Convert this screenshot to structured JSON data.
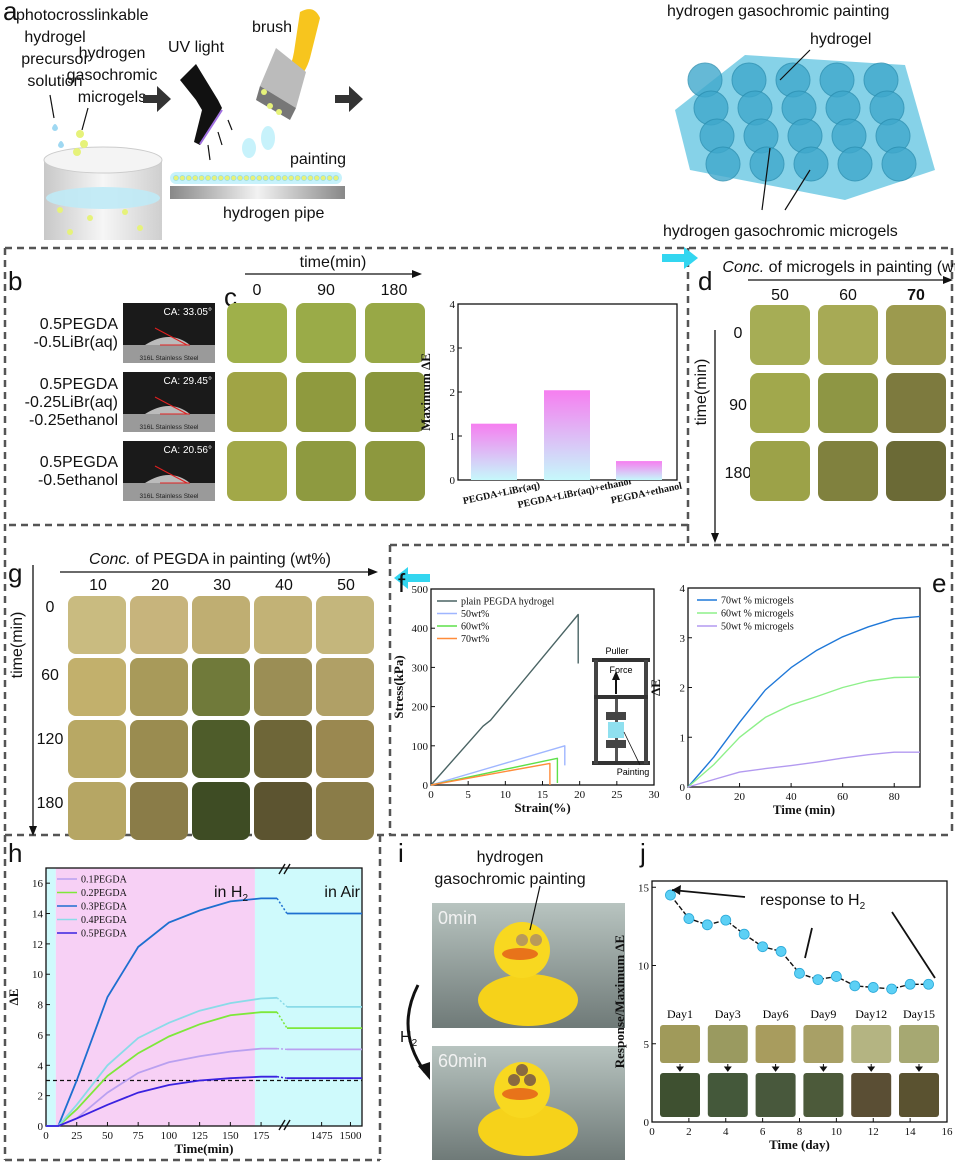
{
  "panel_labels": {
    "a": "a",
    "b": "b",
    "c": "c",
    "d": "d",
    "e": "e",
    "f": "f",
    "g": "g",
    "h": "h",
    "i": "i",
    "j": "j"
  },
  "a": {
    "precursor": [
      "photocrosslinkable",
      "hydrogel",
      "precursor",
      "solution"
    ],
    "microgels": [
      "hydrogen",
      "gasochromic",
      "microgels"
    ],
    "uv_light": "UV light",
    "brush": "brush",
    "painting": "painting",
    "pipe": "hydrogen pipe",
    "result_title": "hydrogen gasochromic painting",
    "hydrogel": "hydrogel",
    "microgels_label": "hydrogen gasochromic microgels",
    "colors": {
      "hydrogel": "#5ec3e0",
      "microgel": "#e6f27a",
      "brush_handle": "#f7c51e"
    }
  },
  "b": {
    "samples": [
      {
        "lines": [
          "0.5PEGDA",
          "-0.5LiBr(aq)"
        ],
        "ca": "CA: 33.05°",
        "substrate": "316L Stainless Steel"
      },
      {
        "lines": [
          "0.5PEGDA",
          "-0.25LiBr(aq)",
          "-0.25ethanol"
        ],
        "ca": "CA: 29.45°",
        "substrate": "316L Stainless Steel"
      },
      {
        "lines": [
          "0.5PEGDA",
          "-0.5ethanol"
        ],
        "ca": "CA: 20.56°",
        "substrate": "316L Stainless Steel"
      }
    ]
  },
  "c": {
    "axis_label": "time(min)",
    "times": [
      "0",
      "90",
      "180"
    ],
    "tile_colors": [
      [
        "#9fb04a",
        "#9aab48",
        "#98a846"
      ],
      [
        "#a0a445",
        "#8f9a3e",
        "#8a963c"
      ],
      [
        "#a2a848",
        "#8e9a40",
        "#8d983e"
      ]
    ]
  },
  "d": {
    "axis_prefix": "Conc.",
    "axis_label": " of microgels in painting (wt%)",
    "concs": [
      "50",
      "60",
      "70"
    ],
    "highlight": "70",
    "time_label": "time(min)",
    "times": [
      "0",
      "90",
      "180"
    ],
    "tile_colors": [
      [
        "#a6ad55",
        "#a7aa55",
        "#9c9a4e"
      ],
      [
        "#a1a84c",
        "#8e9644",
        "#7d7a3e"
      ],
      [
        "#9ca248",
        "#80813e",
        "#6b6a36"
      ]
    ]
  },
  "g": {
    "axis_prefix": "Conc.",
    "axis_label": " of PEGDA in painting (wt%)",
    "concs": [
      "10",
      "20",
      "30",
      "40",
      "50"
    ],
    "highlight": "30",
    "time_label": "time(min)",
    "times": [
      "0",
      "60",
      "120",
      "180"
    ],
    "tile_colors": [
      [
        "#c9bb80",
        "#c7b47c",
        "#bfae72",
        "#c2b276",
        "#c4b67c"
      ],
      [
        "#c2b06c",
        "#a89a5a",
        "#707a3a",
        "#9b8e55",
        "#b0a066"
      ],
      [
        "#b8a864",
        "#9a8c50",
        "#4e5c2a",
        "#6e6638",
        "#9a8850"
      ],
      [
        "#b6a664",
        "#8a7c48",
        "#3e4c24",
        "#5c5430",
        "#8a7c48"
      ]
    ]
  },
  "f_inset": {
    "puller": "Puller",
    "force": "Force",
    "painting": "Painting"
  },
  "h_regions": {
    "h2_prefix": "in H",
    "h2_sub": "2",
    "air": "in Air",
    "colors": {
      "h2": "#f7d0f5",
      "air": "#cffafc"
    }
  },
  "i": {
    "title": [
      "hydrogen",
      "gasochromic painting"
    ],
    "t0": "0min",
    "t1": "60min",
    "gas": "H",
    "gas_sub": "2"
  },
  "j": {
    "annotation_prefix": "response to H",
    "annotation_sub": "2",
    "days": [
      "Day1",
      "Day3",
      "Day6",
      "Day9",
      "Day12",
      "Day15"
    ],
    "before_colors": [
      "#a09a5a",
      "#9a9a60",
      "#a89c5e",
      "#a8a066",
      "#b4b482",
      "#a6a872"
    ],
    "after_colors": [
      "#3e5030",
      "#44583a",
      "#48583c",
      "#4c5a3a",
      "#5a4e34",
      "#5a5230"
    ]
  },
  "chart_data": [
    {
      "id": "c",
      "type": "bar",
      "categories": [
        "PEGDA+LiBr(aq)",
        "PEGDA+LiBr(aq)+ethanol",
        "PEGDA+ethanol"
      ],
      "highlight_category": "PEGDA+LiBr(aq)+ethanol",
      "values": [
        1.28,
        2.04,
        0.43
      ],
      "xlabel": "",
      "ylabel": "Maximum ΔE",
      "ylim": [
        0,
        4
      ],
      "yticks": [
        0,
        1,
        2,
        3,
        4
      ],
      "colors": {
        "top": "#f67ef0",
        "bottom": "#c6f8fb"
      }
    },
    {
      "id": "f",
      "type": "line",
      "xlabel": "Strain(%)",
      "ylabel": "Stress(kPa)",
      "xlim": [
        0,
        30
      ],
      "ylim": [
        0,
        500
      ],
      "xticks": [
        0,
        5,
        10,
        15,
        20,
        25,
        30
      ],
      "yticks": [
        0,
        100,
        200,
        300,
        400,
        500
      ],
      "legend": "top-left",
      "series": [
        {
          "name": "plain PEGDA hydrogel",
          "color": "#4a6464",
          "x": [
            0,
            7,
            8,
            19.8,
            19.8
          ],
          "y": [
            0,
            150,
            165,
            435,
            310
          ]
        },
        {
          "name": "50wt%",
          "color": "#9fb6ff",
          "x": [
            0,
            18,
            18
          ],
          "y": [
            0,
            100,
            50
          ]
        },
        {
          "name": "60wt%",
          "color": "#5ee04a",
          "x": [
            0,
            17,
            17
          ],
          "y": [
            0,
            68,
            5
          ]
        },
        {
          "name": "70wt%",
          "color": "#ff8c3a",
          "x": [
            0,
            16,
            16
          ],
          "y": [
            0,
            55,
            0
          ]
        }
      ]
    },
    {
      "id": "e",
      "type": "line",
      "xlabel": "Time (min)",
      "ylabel": "ΔE",
      "xlim": [
        0,
        90
      ],
      "ylim": [
        0,
        4
      ],
      "xticks": [
        0,
        20,
        40,
        60,
        80
      ],
      "yticks": [
        0,
        1,
        2,
        3,
        4
      ],
      "legend": "top-left",
      "series": [
        {
          "name": "70wt % microgels",
          "color": "#1f78d8",
          "x": [
            0,
            10,
            20,
            30,
            40,
            50,
            60,
            70,
            80,
            90
          ],
          "y": [
            0,
            0.6,
            1.3,
            1.95,
            2.4,
            2.75,
            3.02,
            3.22,
            3.38,
            3.43
          ]
        },
        {
          "name": "60wt % microgels",
          "color": "#8ef08a",
          "x": [
            0,
            10,
            20,
            30,
            40,
            50,
            60,
            70,
            80,
            90
          ],
          "y": [
            0,
            0.45,
            1.0,
            1.4,
            1.65,
            1.82,
            2.0,
            2.13,
            2.2,
            2.21
          ]
        },
        {
          "name": "50wt % microgels",
          "color": "#b39af0",
          "x": [
            0,
            10,
            20,
            30,
            40,
            50,
            60,
            70,
            80,
            90
          ],
          "y": [
            0,
            0.15,
            0.3,
            0.37,
            0.43,
            0.5,
            0.58,
            0.65,
            0.7,
            0.7
          ]
        }
      ]
    },
    {
      "id": "h",
      "type": "line",
      "xlabel": "Time(min)",
      "ylabel": "ΔE",
      "x_break": [
        190,
        1445
      ],
      "xlim": [
        0,
        1510
      ],
      "ylim": [
        0,
        17
      ],
      "xticks": [
        0,
        25,
        50,
        75,
        100,
        125,
        150,
        175,
        1475,
        1500
      ],
      "yticks": [
        0,
        2,
        4,
        6,
        8,
        10,
        12,
        14,
        16
      ],
      "threshold": 3,
      "regions": [
        {
          "from": 0,
          "to": 8,
          "label": "air"
        },
        {
          "from": 8,
          "to": 170,
          "label": "h2"
        },
        {
          "from": 170,
          "to": 1510,
          "label": "air"
        }
      ],
      "legend": "top-left",
      "series": [
        {
          "name": "0.1PEGDA",
          "color": "#b9a0f0",
          "x": [
            0,
            10,
            25,
            50,
            75,
            100,
            125,
            150,
            175,
            188,
            1445,
            1510
          ],
          "y": [
            0,
            0,
            0.5,
            2.2,
            3.5,
            4.2,
            4.6,
            4.9,
            5.1,
            5.1,
            5.05,
            5.05
          ]
        },
        {
          "name": "0.2PEGDA",
          "color": "#7ee83a",
          "x": [
            0,
            10,
            25,
            50,
            75,
            100,
            125,
            150,
            175,
            188,
            1445,
            1510
          ],
          "y": [
            0,
            0,
            1.1,
            3.3,
            4.8,
            5.9,
            6.7,
            7.3,
            7.5,
            7.5,
            6.45,
            6.45
          ]
        },
        {
          "name": "0.3PEGDA",
          "color": "#1e6fd0",
          "x": [
            0,
            10,
            25,
            50,
            75,
            100,
            125,
            150,
            175,
            188,
            1445,
            1510
          ],
          "y": [
            0,
            0,
            3,
            8.5,
            11.8,
            13.4,
            14.2,
            14.8,
            15,
            15,
            14,
            14
          ]
        },
        {
          "name": "0.4PEGDA",
          "color": "#8adbe8",
          "x": [
            0,
            10,
            25,
            50,
            75,
            100,
            125,
            150,
            175,
            188,
            1445,
            1510
          ],
          "y": [
            0,
            0,
            1.4,
            4,
            5.8,
            6.8,
            7.6,
            8.1,
            8.4,
            8.45,
            7.85,
            7.85
          ]
        },
        {
          "name": "0.5PEGDA",
          "color": "#3a22e0",
          "x": [
            0,
            10,
            25,
            50,
            75,
            100,
            125,
            150,
            175,
            188,
            1445,
            1510
          ],
          "y": [
            0,
            0,
            0.5,
            1.4,
            2.2,
            2.7,
            3.0,
            3.15,
            3.25,
            3.25,
            3.15,
            3.15
          ]
        }
      ]
    },
    {
      "id": "j",
      "type": "scatter",
      "xlabel": "Time (day)",
      "ylabel": "Response/Maximum ΔE",
      "xlim": [
        0,
        16
      ],
      "ylim": [
        0,
        15.4
      ],
      "xticks": [
        0,
        2,
        4,
        6,
        8,
        10,
        12,
        14,
        16
      ],
      "yticks": [
        0,
        5,
        10,
        15
      ],
      "marker_color": "#5cd0f5",
      "x": [
        1,
        2,
        3,
        4,
        5,
        6,
        7,
        8,
        9,
        10,
        11,
        12,
        13,
        14,
        15
      ],
      "y": [
        14.5,
        13.0,
        12.6,
        12.9,
        12.0,
        11.2,
        10.9,
        9.5,
        9.1,
        9.3,
        8.7,
        8.6,
        8.5,
        8.8,
        8.8
      ]
    }
  ]
}
